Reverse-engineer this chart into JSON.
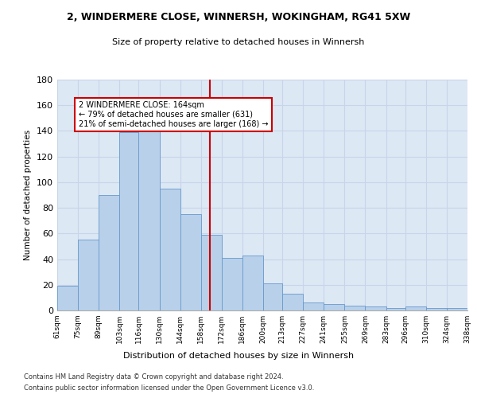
{
  "title1": "2, WINDERMERE CLOSE, WINNERSH, WOKINGHAM, RG41 5XW",
  "title2": "Size of property relative to detached houses in Winnersh",
  "xlabel": "Distribution of detached houses by size in Winnersh",
  "ylabel": "Number of detached properties",
  "bin_edges": [
    61,
    75,
    89,
    103,
    116,
    130,
    144,
    158,
    172,
    186,
    200,
    213,
    227,
    241,
    255,
    269,
    283,
    296,
    310,
    324,
    338
  ],
  "bin_labels": [
    "61sqm",
    "75sqm",
    "89sqm",
    "103sqm",
    "116sqm",
    "130sqm",
    "144sqm",
    "158sqm",
    "172sqm",
    "186sqm",
    "200sqm",
    "213sqm",
    "227sqm",
    "241sqm",
    "255sqm",
    "269sqm",
    "283sqm",
    "296sqm",
    "310sqm",
    "324sqm",
    "338sqm"
  ],
  "bar_heights": [
    19,
    55,
    90,
    139,
    140,
    95,
    75,
    59,
    41,
    43,
    21,
    13,
    6,
    5,
    4,
    3,
    2,
    3,
    2,
    2
  ],
  "bar_color": "#b8d0ea",
  "bar_edge_color": "#6699cc",
  "vline_x": 164,
  "vline_color": "#cc0000",
  "annotation_text": "2 WINDERMERE CLOSE: 164sqm\n← 79% of detached houses are smaller (631)\n21% of semi-detached houses are larger (168) →",
  "annotation_box_color": "#cc0000",
  "grid_color": "#c8d4e8",
  "bg_color": "#dde8f5",
  "ylim": [
    0,
    180
  ],
  "yticks": [
    0,
    20,
    40,
    60,
    80,
    100,
    120,
    140,
    160,
    180
  ],
  "footer1": "Contains HM Land Registry data © Crown copyright and database right 2024.",
  "footer2": "Contains public sector information licensed under the Open Government Licence v3.0."
}
